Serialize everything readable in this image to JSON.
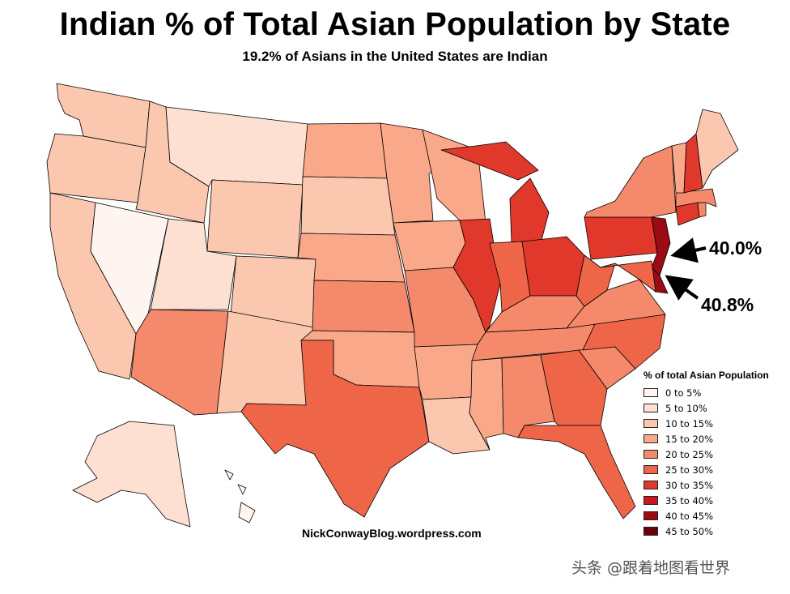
{
  "header": {
    "title": "Indian % of Total Asian Population by State",
    "subtitle": "19.2% of Asians in the United States are Indian"
  },
  "callouts": [
    {
      "label": "40.0%"
    },
    {
      "label": "40.8%"
    }
  ],
  "legend": {
    "title": "% of total Asian Population",
    "items": [
      {
        "label": "0 to 5%",
        "color": "#fff5f0"
      },
      {
        "label": "5 to 10%",
        "color": "#fde0d2"
      },
      {
        "label": "10 to 15%",
        "color": "#fbc7ae"
      },
      {
        "label": "15 to 20%",
        "color": "#f9a88a"
      },
      {
        "label": "20 to 25%",
        "color": "#f5896b"
      },
      {
        "label": "25 to 30%",
        "color": "#ef6548"
      },
      {
        "label": "30 to 35%",
        "color": "#e0382b"
      },
      {
        "label": "35 to 40%",
        "color": "#c8181e"
      },
      {
        "label": "40 to 45%",
        "color": "#9c0a14"
      },
      {
        "label": "45 to 50%",
        "color": "#67000d"
      }
    ]
  },
  "states": {
    "WA": "10 to 15%",
    "OR": "10 to 15%",
    "CA": "10 to 15%",
    "ID": "10 to 15%",
    "NV": "0 to 5%",
    "UT": "5 to 10%",
    "MT": "5 to 10%",
    "WY": "10 to 15%",
    "CO": "10 to 15%",
    "AZ": "20 to 25%",
    "NM": "10 to 15%",
    "ND": "15 to 20%",
    "SD": "10 to 15%",
    "NE": "15 to 20%",
    "KS": "20 to 25%",
    "OK": "15 to 20%",
    "TX": "25 to 30%",
    "MN": "15 to 20%",
    "IA": "15 to 20%",
    "MO": "20 to 25%",
    "AR": "15 to 20%",
    "LA": "10 to 15%",
    "WI": "15 to 20%",
    "IL": "30 to 35%",
    "MI": "30 to 35%",
    "IN": "25 to 30%",
    "OH": "30 to 35%",
    "KY": "20 to 25%",
    "TN": "20 to 25%",
    "MS": "15 to 20%",
    "AL": "20 to 25%",
    "GA": "25 to 30%",
    "FL": "25 to 30%",
    "SC": "20 to 25%",
    "NC": "25 to 30%",
    "VA": "20 to 25%",
    "WV": "25 to 30%",
    "PA": "30 to 35%",
    "NY": "20 to 25%",
    "NJ": "40 to 45%",
    "DE": "40 to 45%",
    "MD": "25 to 30%",
    "CT": "30 to 35%",
    "RI": "20 to 25%",
    "MA": "20 to 25%",
    "VT": "15 to 20%",
    "NH": "30 to 35%",
    "ME": "10 to 15%",
    "AK": "5 to 10%",
    "HI": "0 to 5%"
  },
  "credit": "NickConwayBlog.wordpress.com",
  "watermark": "头条 @跟着地图看世界"
}
